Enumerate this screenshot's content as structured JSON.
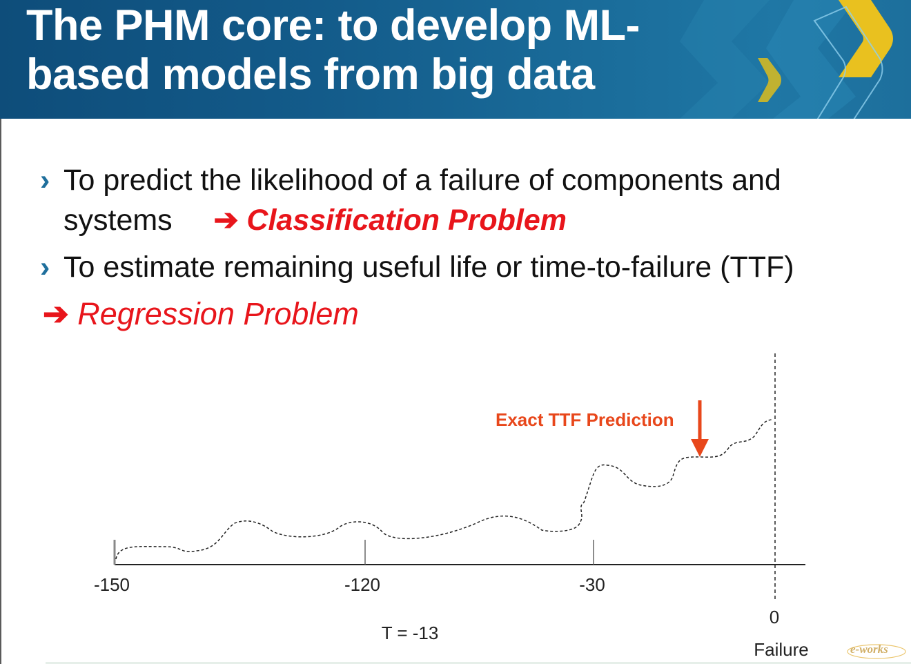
{
  "slide": {
    "title": "The PHM core: to develop ML-based models from big data",
    "bullets": [
      {
        "marker": "›",
        "text": "To predict the likelihood of a failure of components and systems",
        "arrow": "➔",
        "emphasis": "Classification Problem"
      },
      {
        "marker": "›",
        "text": "To estimate remaining useful life or time-to-failure (TTF)"
      }
    ],
    "regression": {
      "arrow": "➔",
      "emphasis": "Regression Problem"
    }
  },
  "chart_data": {
    "type": "line",
    "x_ticks": [
      "-150",
      "-120",
      "-30",
      "0"
    ],
    "failure_label": "Failure",
    "current_time_label": "T = -13",
    "annotation": "Exact TTF Prediction",
    "colors": {
      "curve": "#222222",
      "annotation": "#e8471b",
      "arrow": "#e8471b"
    },
    "grid": false
  },
  "watermark": {
    "text": "e-works"
  },
  "colors": {
    "header": "#135b8a",
    "accent_red": "#e8151b",
    "bullet_blue": "#1f6f9c",
    "decor_yellow": "#e9c11f"
  }
}
